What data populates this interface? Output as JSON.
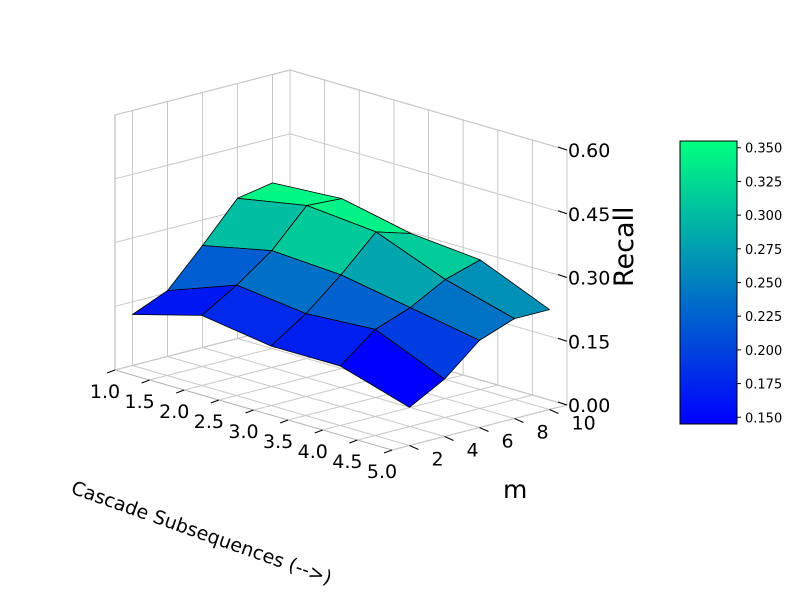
{
  "chart_data": {
    "type": "surface3d",
    "x": [
      1.0,
      2.0,
      3.0,
      4.0,
      5.0
    ],
    "y": [
      2,
      4,
      6,
      8,
      10
    ],
    "z": [
      [
        0.12,
        0.165,
        0.14,
        0.14,
        0.09
      ],
      [
        0.155,
        0.215,
        0.195,
        0.205,
        0.135
      ],
      [
        0.24,
        0.275,
        0.265,
        0.235,
        0.205
      ],
      [
        0.33,
        0.36,
        0.345,
        0.28,
        0.235
      ],
      [
        0.345,
        0.355,
        0.32,
        0.305,
        0.235
      ]
    ],
    "xlabel": "Cascade Subsequences (-->)",
    "ylabel": "m",
    "zlabel": "Recall",
    "x_ticks": [
      "1.0",
      "1.5",
      "2.0",
      "2.5",
      "3.0",
      "3.5",
      "4.0",
      "4.5",
      "5.0"
    ],
    "y_ticks": [
      "2",
      "4",
      "6",
      "8",
      "10"
    ],
    "z_ticks": [
      "0.00",
      "0.15",
      "0.30",
      "0.45",
      "0.60"
    ],
    "xlim": [
      1.0,
      5.0
    ],
    "ylim": [
      1,
      11
    ],
    "zlim": [
      0.0,
      0.6
    ],
    "colormap": "winter",
    "colormap_colors": [
      "#0000ff",
      "#00ff80"
    ],
    "colorbar": {
      "range": [
        0.145,
        0.355
      ],
      "ticks": [
        "0.150",
        "0.175",
        "0.200",
        "0.225",
        "0.250",
        "0.275",
        "0.300",
        "0.325",
        "0.350"
      ]
    },
    "grid": true
  }
}
